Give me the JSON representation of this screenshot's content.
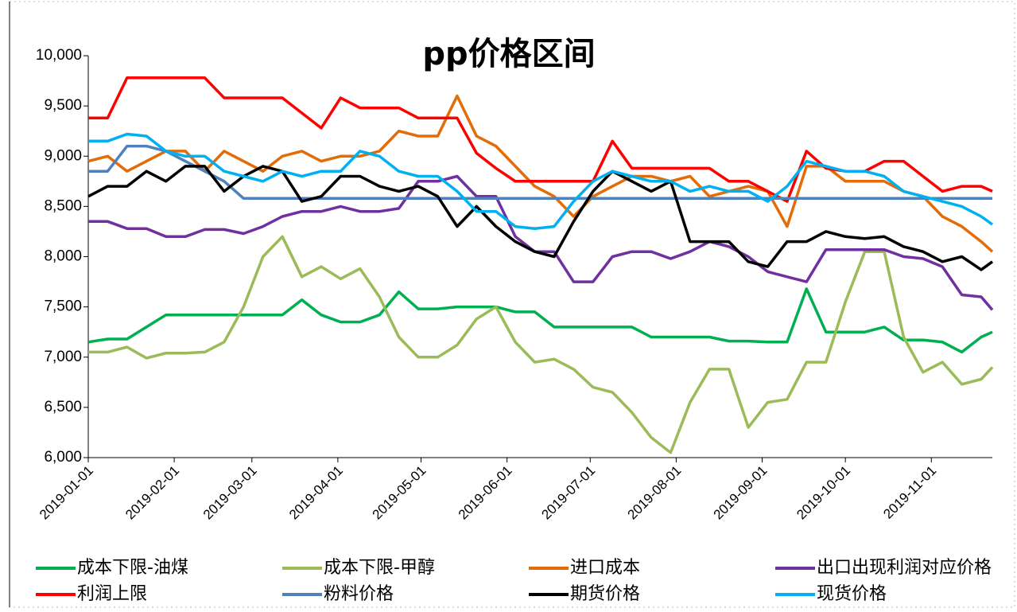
{
  "chart_data": {
    "type": "line",
    "title": "pp价格区间",
    "x": [
      "2019-01-01",
      "2019-01-08",
      "2019-01-15",
      "2019-01-22",
      "2019-01-29",
      "2019-02-05",
      "2019-02-12",
      "2019-02-19",
      "2019-02-26",
      "2019-03-05",
      "2019-03-12",
      "2019-03-19",
      "2019-03-26",
      "2019-04-02",
      "2019-04-09",
      "2019-04-16",
      "2019-04-23",
      "2019-04-30",
      "2019-05-07",
      "2019-05-14",
      "2019-05-21",
      "2019-05-28",
      "2019-06-04",
      "2019-06-11",
      "2019-06-18",
      "2019-06-25",
      "2019-07-02",
      "2019-07-09",
      "2019-07-16",
      "2019-07-23",
      "2019-07-30",
      "2019-08-06",
      "2019-08-13",
      "2019-08-20",
      "2019-08-27",
      "2019-09-03",
      "2019-09-10",
      "2019-09-17",
      "2019-09-24",
      "2019-10-01",
      "2019-10-08",
      "2019-10-15",
      "2019-10-22",
      "2019-10-29",
      "2019-11-05",
      "2019-11-12",
      "2019-11-19",
      "2019-11-23"
    ],
    "series": [
      {
        "name": "成本下限-油煤",
        "color": "#00b050",
        "values": [
          7150,
          7180,
          7180,
          7300,
          7420,
          7420,
          7420,
          7420,
          7420,
          7420,
          7420,
          7570,
          7420,
          7350,
          7350,
          7420,
          7650,
          7480,
          7480,
          7500,
          7500,
          7500,
          7450,
          7450,
          7300,
          7300,
          7300,
          7300,
          7300,
          7200,
          7200,
          7200,
          7200,
          7160,
          7160,
          7150,
          7150,
          7680,
          7250,
          7250,
          7250,
          7300,
          7170,
          7170,
          7150,
          7050,
          7200,
          7250
        ]
      },
      {
        "name": "成本下限-甲醇",
        "color": "#9bbb59",
        "values": [
          7050,
          7050,
          7100,
          6990,
          7040,
          7040,
          7050,
          7150,
          7500,
          8000,
          8200,
          7800,
          7900,
          7780,
          7880,
          7600,
          7200,
          7000,
          7000,
          7120,
          7380,
          7500,
          7150,
          6950,
          6980,
          6880,
          6700,
          6650,
          6450,
          6200,
          6050,
          6550,
          6880,
          6880,
          6300,
          6550,
          6580,
          6950,
          6950,
          7550,
          8050,
          8050,
          7200,
          6850,
          6950,
          6730,
          6780,
          6900
        ]
      },
      {
        "name": "进口成本",
        "color": "#e36c09",
        "values": [
          8950,
          9000,
          8850,
          8950,
          9050,
          9050,
          8850,
          9050,
          8950,
          8850,
          9000,
          9050,
          8950,
          9000,
          9000,
          9050,
          9250,
          9200,
          9200,
          9600,
          9200,
          9100,
          8900,
          8700,
          8600,
          8400,
          8600,
          8700,
          8800,
          8800,
          8750,
          8800,
          8600,
          8650,
          8700,
          8650,
          8300,
          8900,
          8900,
          8750,
          8750,
          8750,
          8650,
          8600,
          8400,
          8300,
          8150,
          8050
        ]
      },
      {
        "name": "出口出现利润对应价格",
        "color": "#7030a0",
        "values": [
          8350,
          8350,
          8280,
          8280,
          8200,
          8200,
          8270,
          8270,
          8230,
          8300,
          8400,
          8450,
          8450,
          8500,
          8450,
          8450,
          8480,
          8750,
          8750,
          8800,
          8600,
          8600,
          8200,
          8050,
          8050,
          7750,
          7750,
          8000,
          8050,
          8050,
          7980,
          8050,
          8150,
          8100,
          8000,
          7850,
          7800,
          7750,
          8070,
          8070,
          8070,
          8070,
          8000,
          7980,
          7900,
          7620,
          7600,
          7470
        ]
      },
      {
        "name": "利润上限",
        "color": "#ff0000",
        "values": [
          9380,
          9380,
          9780,
          9780,
          9780,
          9780,
          9780,
          9580,
          9580,
          9580,
          9580,
          9430,
          9280,
          9580,
          9480,
          9480,
          9480,
          9380,
          9380,
          9380,
          9030,
          8880,
          8750,
          8750,
          8750,
          8750,
          8750,
          9150,
          8880,
          8880,
          8880,
          8880,
          8880,
          8750,
          8750,
          8650,
          8550,
          9050,
          8880,
          8850,
          8850,
          8950,
          8950,
          8800,
          8650,
          8700,
          8700,
          8650
        ]
      },
      {
        "name": "粉料价格",
        "color": "#4f81bd",
        "values": [
          8850,
          8850,
          9100,
          9100,
          9050,
          8950,
          8850,
          8750,
          8580,
          8580,
          8580,
          8580,
          8580,
          8580,
          8580,
          8580,
          8580,
          8580,
          8580,
          8580,
          8580,
          8580,
          8580,
          8580,
          8580,
          8580,
          8580,
          8580,
          8580,
          8580,
          8580,
          8580,
          8580,
          8580,
          8580,
          8580,
          8580,
          8580,
          8580,
          8580,
          8580,
          8580,
          8580,
          8580,
          8580,
          8580,
          8580,
          8580
        ]
      },
      {
        "name": "期货价格",
        "color": "#000000",
        "values": [
          8600,
          8700,
          8700,
          8850,
          8750,
          8900,
          8900,
          8650,
          8800,
          8900,
          8850,
          8550,
          8600,
          8800,
          8800,
          8700,
          8650,
          8700,
          8600,
          8300,
          8500,
          8300,
          8150,
          8050,
          8000,
          8350,
          8650,
          8850,
          8750,
          8650,
          8750,
          8150,
          8150,
          8150,
          7950,
          7900,
          8150,
          8150,
          8250,
          8200,
          8180,
          8200,
          8100,
          8050,
          7950,
          8000,
          7870,
          7950
        ]
      },
      {
        "name": "现货价格",
        "color": "#00b0f0",
        "values": [
          9150,
          9150,
          9220,
          9200,
          9050,
          9000,
          9000,
          8850,
          8800,
          8750,
          8850,
          8800,
          8850,
          8850,
          9050,
          9000,
          8850,
          8800,
          8800,
          8650,
          8450,
          8450,
          8300,
          8280,
          8300,
          8550,
          8750,
          8850,
          8800,
          8750,
          8750,
          8650,
          8700,
          8650,
          8650,
          8550,
          8700,
          8950,
          8900,
          8850,
          8850,
          8800,
          8650,
          8600,
          8550,
          8500,
          8400,
          8320
        ]
      }
    ],
    "xlim": [
      "2019-01-01",
      "2019-11-23"
    ],
    "xticks": [
      "2019-01-01",
      "2019-02-01",
      "2019-03-01",
      "2019-04-01",
      "2019-05-01",
      "2019-06-01",
      "2019-07-01",
      "2019-08-01",
      "2019-09-01",
      "2019-10-01",
      "2019-11-01"
    ],
    "ylim": [
      6000,
      10000
    ],
    "yticks": [
      {
        "value": 6000,
        "label": "6,000"
      },
      {
        "value": 6500,
        "label": "6,500"
      },
      {
        "value": 7000,
        "label": "7,000"
      },
      {
        "value": 7500,
        "label": "7,500"
      },
      {
        "value": 8000,
        "label": "8,000"
      },
      {
        "value": 8500,
        "label": "8,500"
      },
      {
        "value": 9000,
        "label": "9,000"
      },
      {
        "value": 9500,
        "label": "9,500"
      },
      {
        "value": 10000,
        "label": "10,000"
      }
    ]
  }
}
